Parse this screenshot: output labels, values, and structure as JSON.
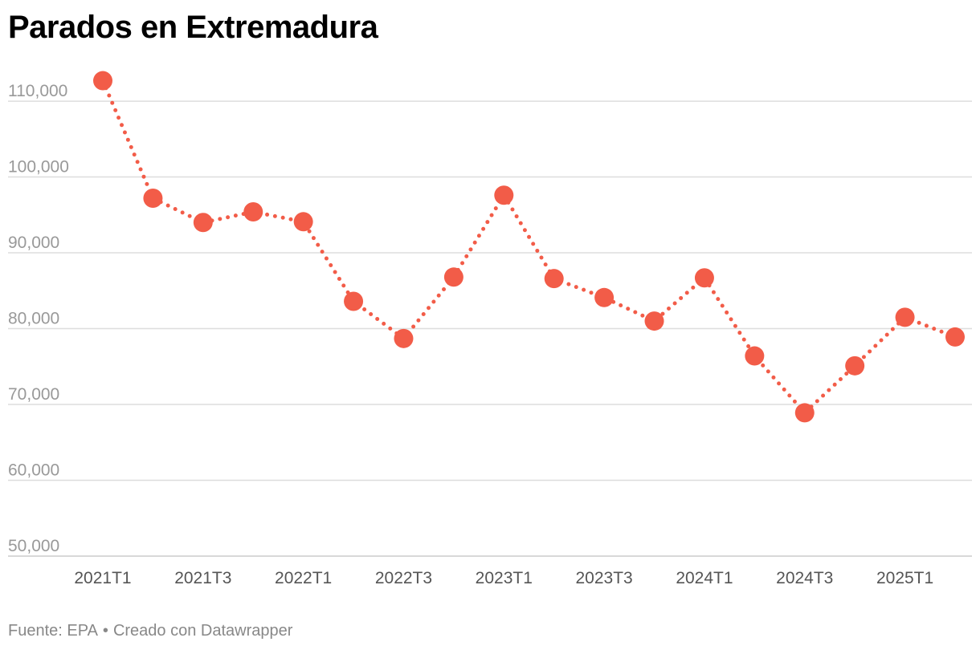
{
  "title": "Parados en Extremadura",
  "footer": {
    "source": "Fuente: EPA",
    "separator": "•",
    "credit": "Creado con Datawrapper"
  },
  "colors": {
    "series": "#f25c48",
    "grid": "#dddddd",
    "axis": "#cccccc"
  },
  "chart_data": {
    "type": "line",
    "title": "Parados en Extremadura",
    "xlabel": "",
    "ylabel": "",
    "ylim": [
      50000,
      113500
    ],
    "yticks": [
      50000,
      60000,
      70000,
      80000,
      90000,
      100000,
      110000
    ],
    "ytick_labels": [
      "50,000",
      "60,000",
      "70,000",
      "80,000",
      "90,000",
      "100,000",
      "110,000"
    ],
    "x": [
      "2021T1",
      "2021T2",
      "2021T3",
      "2021T4",
      "2022T1",
      "2022T2",
      "2022T3",
      "2022T4",
      "2023T1",
      "2023T2",
      "2023T3",
      "2023T4",
      "2024T1",
      "2024T2",
      "2024T3",
      "2024T4",
      "2025T1",
      "2025T2"
    ],
    "xtick_labels": [
      "2021T1",
      "2021T3",
      "2022T1",
      "2022T3",
      "2023T1",
      "2023T3",
      "2024T1",
      "2024T3",
      "2025T1"
    ],
    "grid": true,
    "legend": "none",
    "series": [
      {
        "values": [
          112700,
          97200,
          94000,
          95400,
          94100,
          83600,
          78700,
          86800,
          97600,
          86600,
          84100,
          81000,
          86700,
          76400,
          68900,
          75100,
          81500,
          78900
        ]
      }
    ]
  }
}
